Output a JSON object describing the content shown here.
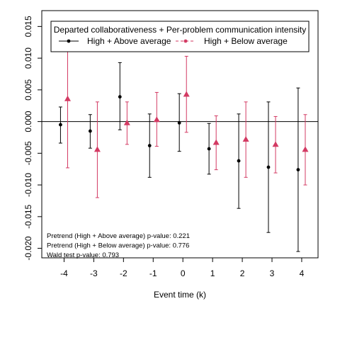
{
  "chart_data": {
    "type": "scatter",
    "title": "",
    "xlabel": "Event time (k)",
    "ylabel": "",
    "x": [
      -4,
      -3,
      -2,
      -1,
      0,
      1,
      2,
      3,
      4
    ],
    "x_tick_labels": [
      "-4",
      "-3",
      "-2",
      "-1",
      "0",
      "1",
      "2",
      "3",
      "4"
    ],
    "xlim": [
      -4.75,
      4.55
    ],
    "ylim": [
      -0.0215,
      0.0175
    ],
    "y_ticks": [
      -0.02,
      -0.015,
      -0.01,
      -0.005,
      0.0,
      0.005,
      0.01,
      0.015
    ],
    "y_tick_labels": [
      "-0.020",
      "-0.015",
      "-0.010",
      "-0.005",
      "0.000",
      "0.005",
      "0.010",
      "0.015"
    ],
    "reference_line_y": 0,
    "grid": false,
    "legend": {
      "title": "Departed collaborativeness + Per-problem communication intensity",
      "placement": "top-center"
    },
    "series": [
      {
        "name": "High + Above average",
        "color": "#000000",
        "marker": "circle",
        "line_style": "solid",
        "x_offset": -0.12,
        "estimates": [
          -0.0005,
          -0.0015,
          0.0039,
          -0.0038,
          -0.0002,
          -0.0043,
          -0.0062,
          -0.0072,
          -0.0076
        ],
        "ci_low": [
          -0.0034,
          -0.0042,
          -0.0013,
          -0.0088,
          -0.0047,
          -0.0083,
          -0.0137,
          -0.0175,
          -0.0205
        ],
        "ci_high": [
          0.0023,
          0.0011,
          0.0093,
          0.0012,
          0.0044,
          -0.0003,
          0.0012,
          0.0031,
          0.0053
        ]
      },
      {
        "name": "High + Below average",
        "color": "#d33a63",
        "marker": "triangle",
        "line_style": "dashed",
        "x_offset": 0.12,
        "estimates": [
          0.0036,
          -0.0044,
          -0.0002,
          0.0003,
          0.0043,
          -0.0033,
          -0.0028,
          -0.0036,
          -0.0044
        ],
        "ci_low": [
          -0.0073,
          -0.012,
          -0.0036,
          -0.0039,
          -0.0017,
          -0.0076,
          -0.0088,
          -0.0081,
          -0.01
        ],
        "ci_high": [
          0.0145,
          0.0031,
          0.0031,
          0.0046,
          0.0103,
          0.0009,
          0.0031,
          0.0008,
          0.0011
        ]
      }
    ],
    "annotations": [
      "Pretrend (High + Above average) p-value: 0.221",
      "Pretrend (High + Below average) p-value: 0.776",
      "Wald test p-value: 0.793"
    ]
  }
}
